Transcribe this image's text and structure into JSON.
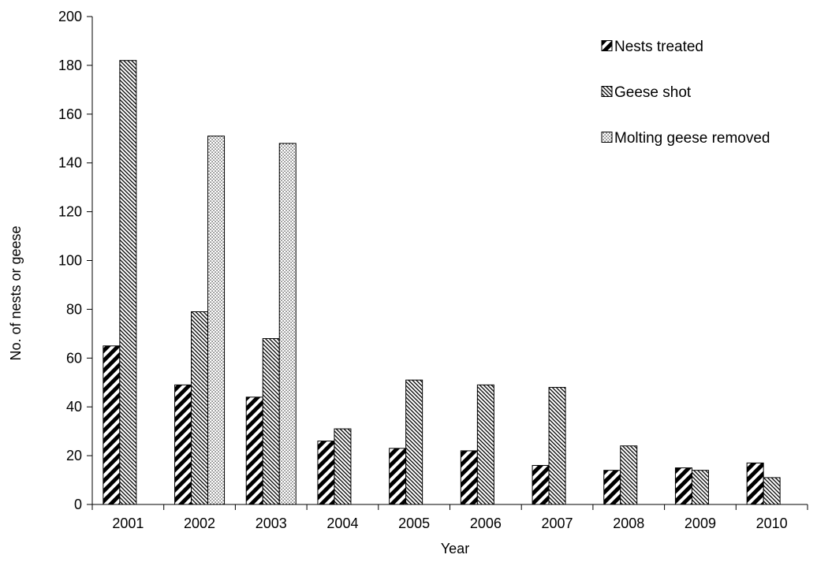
{
  "chart_data": {
    "type": "bar",
    "title": "",
    "xlabel": "Year",
    "ylabel": "No. of nests or geese",
    "ylim": [
      0,
      200
    ],
    "yticks": [
      0,
      20,
      40,
      60,
      80,
      100,
      120,
      140,
      160,
      180,
      200
    ],
    "categories": [
      "2001",
      "2002",
      "2003",
      "2004",
      "2005",
      "2006",
      "2007",
      "2008",
      "2009",
      "2010"
    ],
    "series": [
      {
        "name": "Nests treated",
        "pattern": "bold-diagonal",
        "values": [
          65,
          49,
          44,
          26,
          23,
          22,
          16,
          14,
          15,
          17
        ]
      },
      {
        "name": "Geese shot",
        "pattern": "fine-diagonal",
        "values": [
          182,
          79,
          68,
          31,
          51,
          49,
          48,
          24,
          14,
          11
        ]
      },
      {
        "name": "Molting geese removed",
        "pattern": "dots",
        "values": [
          null,
          151,
          148,
          null,
          null,
          null,
          null,
          null,
          null,
          null
        ]
      }
    ],
    "grid": false,
    "legend_position": "top-right",
    "colors": {
      "ink": "#000000",
      "background": "#ffffff"
    }
  }
}
